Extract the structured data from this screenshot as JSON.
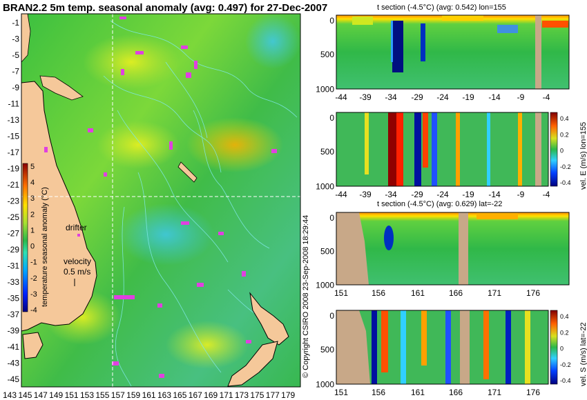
{
  "chart_data": [
    {
      "type": "heatmap",
      "title": "BRAN2.2 5m temp. seasonal anomaly (avg: 0.497) for 27-Dec-2007",
      "x_ticks": [
        "143",
        "145",
        "147",
        "149",
        "151",
        "153",
        "155",
        "157",
        "159",
        "161",
        "163",
        "165",
        "167",
        "169",
        "171",
        "173",
        "175",
        "177",
        "179"
      ],
      "y_ticks": [
        "-1",
        "-3",
        "-5",
        "-7",
        "-9",
        "-11",
        "-13",
        "-15",
        "-17",
        "-19",
        "-21",
        "-23",
        "-25",
        "-27",
        "-29",
        "-31",
        "-33",
        "-35",
        "-37",
        "-39",
        "-41",
        "-43",
        "-45"
      ],
      "xlim": [
        143,
        180
      ],
      "ylim": [
        -45,
        0
      ],
      "colorbar": {
        "label": "temperature seasonal anomaly (°C)",
        "ticks": [
          "5",
          "4",
          "3",
          "2",
          "1",
          "0",
          "-1",
          "-2",
          "-3",
          "-4"
        ],
        "range": [
          -4,
          5
        ]
      },
      "annotations": {
        "drifter": "drifter",
        "velocity": "velocity",
        "velocity_scale": "0.5 m/s"
      },
      "section_lines": {
        "lon": 155,
        "lat": -22
      },
      "colors": {
        "land": "#f5c89a",
        "ocean_base": "#33b54a",
        "contours": "#7fe8e8",
        "drifters": "#e040e0"
      }
    },
    {
      "type": "heatmap",
      "title": "t section (-4.5°C) (avg: 0.542) lon=155",
      "x_ticks": [
        "-44",
        "-39",
        "-34",
        "-29",
        "-24",
        "-19",
        "-14",
        "-9",
        "-4"
      ],
      "y_ticks": [
        "0",
        "500",
        "1000"
      ],
      "xlim": [
        -45,
        0
      ],
      "ylim": [
        1050,
        0
      ],
      "colors": {
        "land": "#c8a888"
      }
    },
    {
      "type": "heatmap",
      "title": "",
      "x_ticks": [
        "-44",
        "-39",
        "-34",
        "-29",
        "-24",
        "-19",
        "-14",
        "-9",
        "-4"
      ],
      "y_ticks": [
        "0",
        "500",
        "1000"
      ],
      "xlim": [
        -45,
        0
      ],
      "ylim": [
        1050,
        0
      ],
      "colorbar": {
        "label": "vel. E (m/s) lon=155",
        "ticks": [
          "0.4",
          "0.2",
          "0",
          "-0.2",
          "-0.4"
        ],
        "range": [
          -0.4,
          0.4
        ]
      }
    },
    {
      "type": "heatmap",
      "title": "t section (-4.5°C) (avg: 0.629) lat=-22",
      "x_ticks": [
        "151",
        "156",
        "161",
        "166",
        "171",
        "176"
      ],
      "y_ticks": [
        "0",
        "500",
        "1000"
      ],
      "xlim": [
        150,
        180
      ],
      "ylim": [
        1050,
        0
      ]
    },
    {
      "type": "heatmap",
      "title": "",
      "x_ticks": [
        "151",
        "156",
        "161",
        "166",
        "171",
        "176"
      ],
      "y_ticks": [
        "0",
        "500",
        "1000"
      ],
      "xlim": [
        150,
        180
      ],
      "ylim": [
        1050,
        0
      ],
      "colorbar": {
        "label": "vel. S (m/s) lat=-22",
        "ticks": [
          "0.4",
          "0.2",
          "0",
          "-0.2",
          "-0.4"
        ],
        "range": [
          -0.4,
          0.4
        ]
      }
    }
  ],
  "copyright": "© Copyright CSIRO 2008  23-Sep-2008 18:29:44"
}
